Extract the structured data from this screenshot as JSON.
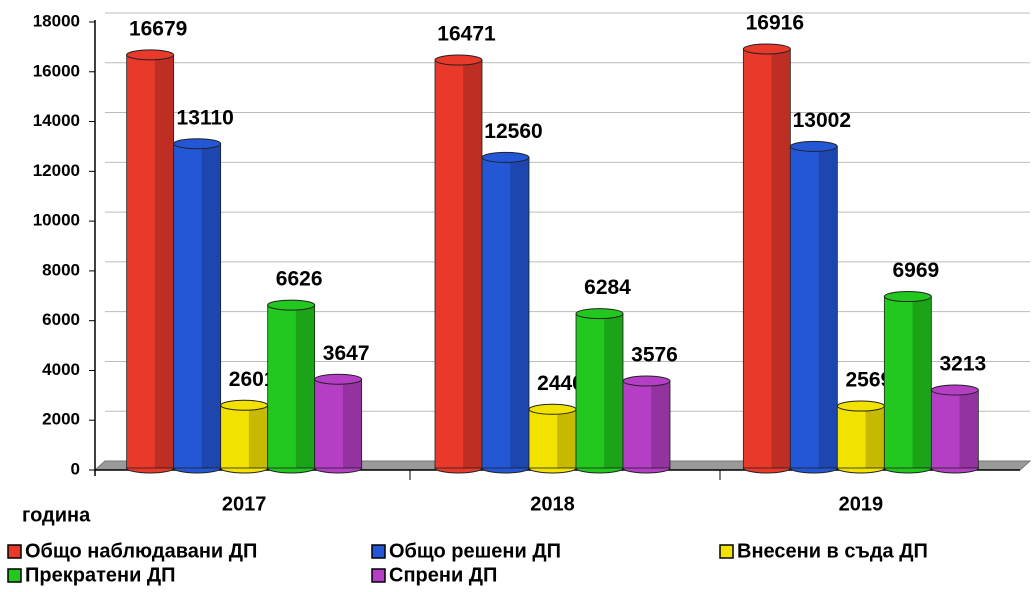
{
  "chart_data": {
    "type": "bar",
    "x_label": "година",
    "categories": [
      "2017",
      "2018",
      "2019"
    ],
    "series": [
      {
        "name": "Общо наблюдавани ДП",
        "color": "#e8392a",
        "values": [
          16679,
          16471,
          16916
        ]
      },
      {
        "name": "Общо решени ДП",
        "color": "#2457d6",
        "values": [
          13110,
          12560,
          13002
        ]
      },
      {
        "name": "Внесени в съда ДП",
        "color": "#f2e200",
        "values": [
          2601,
          2440,
          2569
        ]
      },
      {
        "name": "Прекратени ДП",
        "color": "#22c81e",
        "values": [
          6626,
          6284,
          6969
        ]
      },
      {
        "name": "Спрени ДП",
        "color": "#b43fc4",
        "values": [
          3647,
          3576,
          3213
        ]
      }
    ],
    "ylim": [
      0,
      18000
    ],
    "yticks": [
      0,
      2000,
      4000,
      6000,
      8000,
      10000,
      12000,
      14000,
      16000,
      18000
    ],
    "grid": true,
    "legend": "bottom"
  }
}
